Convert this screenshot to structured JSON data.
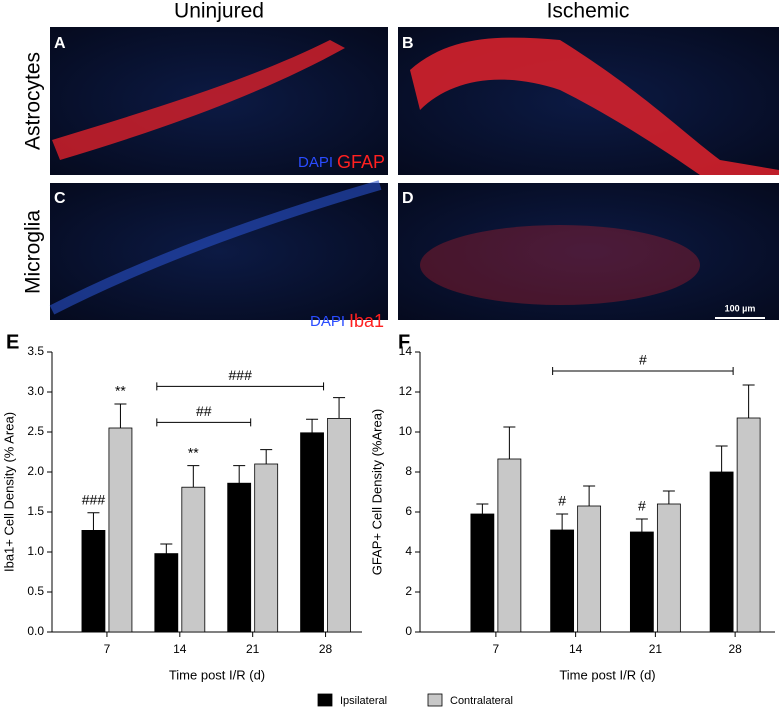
{
  "images": {
    "columns": [
      "Uninjured",
      "Ischemic"
    ],
    "rows": [
      "Astrocytes",
      "Microglia"
    ],
    "panels": [
      "A",
      "B",
      "C",
      "D"
    ],
    "stains": [
      {
        "dapi": "DAPI",
        "marker": "GFAP"
      },
      {
        "dapi": "DAPI",
        "marker": "Iba1"
      }
    ],
    "scale_bar": "100 µm"
  },
  "chart_data": [
    {
      "type": "bar",
      "panel": "E",
      "y_label": "Iba1+ Cell Density (% Area)",
      "x_label": "Time post I/R (d)",
      "categories": [
        "7",
        "14",
        "21",
        "28"
      ],
      "series": [
        {
          "name": "Ipsilateral",
          "color": "#000000",
          "values": [
            1.27,
            0.98,
            1.86,
            2.49
          ],
          "errors": [
            0.22,
            0.12,
            0.22,
            0.17
          ]
        },
        {
          "name": "Contralateral",
          "color": "#c8c8c8",
          "values": [
            2.55,
            1.81,
            2.1,
            2.67
          ],
          "errors": [
            0.3,
            0.27,
            0.18,
            0.26
          ]
        }
      ],
      "ylim": [
        0,
        3.5
      ],
      "yticks": [
        {
          "value": 0,
          "label": "0.0"
        },
        0.5,
        {
          "value": 1,
          "label": "1.0"
        },
        1.5,
        {
          "value": 2,
          "label": "2.0"
        },
        2.5,
        {
          "value": 3,
          "label": "3.0"
        },
        3.5
      ],
      "annotations": [
        {
          "text": "###",
          "category": 0,
          "series": 0
        },
        {
          "text": "**",
          "category": 0,
          "series": 1
        },
        {
          "text": "**",
          "category": 1,
          "series": 1
        }
      ],
      "brackets": [
        {
          "text": "###",
          "from": 1,
          "to": 3,
          "y": 3.07
        },
        {
          "text": "##",
          "from": 1,
          "to": 2,
          "y": 2.62
        }
      ]
    },
    {
      "type": "bar",
      "panel": "F",
      "y_label": "GFAP+ Cell Density (%Area)",
      "x_label": "Time post I/R (d)",
      "categories": [
        "7",
        "14",
        "21",
        "28"
      ],
      "series": [
        {
          "name": "Ipsilateral",
          "color": "#000000",
          "values": [
            5.9,
            5.1,
            5.0,
            8.0
          ],
          "errors": [
            0.5,
            0.8,
            0.65,
            1.3
          ]
        },
        {
          "name": "Contralateral",
          "color": "#c8c8c8",
          "values": [
            8.65,
            6.3,
            6.4,
            10.7
          ],
          "errors": [
            1.6,
            1.0,
            0.65,
            1.65
          ]
        }
      ],
      "ylim": [
        0,
        14
      ],
      "yticks": [
        0,
        2,
        4,
        6,
        8,
        10,
        12,
        14
      ],
      "annotations": [
        {
          "text": "#",
          "category": 1,
          "series": 0
        },
        {
          "text": "#",
          "category": 2,
          "series": 0
        }
      ],
      "brackets": [
        {
          "text": "#",
          "from": 1,
          "to": 3,
          "y": 13.05
        }
      ]
    }
  ]
}
